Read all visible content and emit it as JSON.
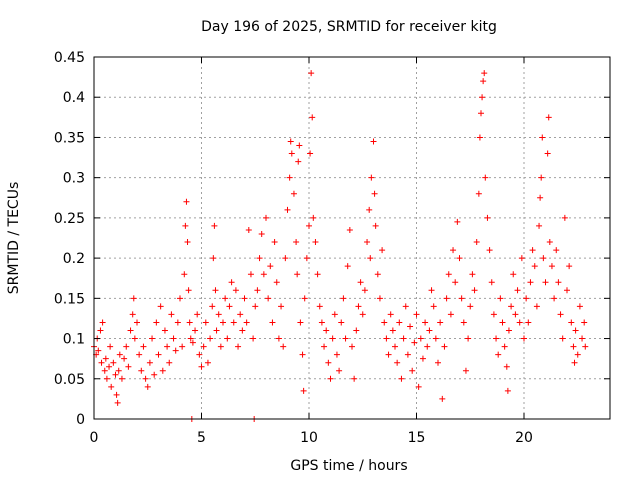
{
  "chart_data": {
    "type": "scatter",
    "title": "Day 196 of 2025, SRMTID for receiver kitg",
    "xlabel": "GPS time / hours",
    "ylabel": "SRMTID / TECUs",
    "xlim": [
      0,
      24
    ],
    "ylim": [
      0,
      0.45
    ],
    "xticks": [
      0,
      5,
      10,
      15,
      20
    ],
    "yticks": [
      0,
      0.05,
      0.1,
      0.15,
      0.2,
      0.25,
      0.3,
      0.35,
      0.4,
      0.45
    ],
    "xtick_labels": [
      "0",
      "5",
      "10",
      "15",
      "20"
    ],
    "ytick_labels": [
      "0",
      "0.05",
      "0.1",
      "0.15",
      "0.2",
      "0.25",
      "0.3",
      "0.35",
      "0.4",
      "0.45"
    ],
    "grid": true,
    "marker": "+",
    "color": "#ff0000",
    "series": [
      {
        "name": "kitg",
        "points": [
          [
            0.0,
            0.09
          ],
          [
            0.1,
            0.08
          ],
          [
            0.15,
            0.1
          ],
          [
            0.2,
            0.085
          ],
          [
            0.3,
            0.11
          ],
          [
            0.35,
            0.07
          ],
          [
            0.4,
            0.12
          ],
          [
            0.5,
            0.06
          ],
          [
            0.55,
            0.075
          ],
          [
            0.6,
            0.05
          ],
          [
            0.7,
            0.065
          ],
          [
            0.75,
            0.09
          ],
          [
            0.8,
            0.04
          ],
          [
            0.9,
            0.07
          ],
          [
            1.0,
            0.055
          ],
          [
            1.05,
            0.03
          ],
          [
            1.1,
            0.02
          ],
          [
            1.15,
            0.06
          ],
          [
            1.2,
            0.08
          ],
          [
            1.3,
            0.05
          ],
          [
            1.4,
            0.075
          ],
          [
            1.5,
            0.09
          ],
          [
            1.6,
            0.065
          ],
          [
            1.7,
            0.11
          ],
          [
            1.8,
            0.13
          ],
          [
            1.85,
            0.15
          ],
          [
            1.9,
            0.1
          ],
          [
            2.0,
            0.12
          ],
          [
            2.1,
            0.08
          ],
          [
            2.2,
            0.06
          ],
          [
            2.3,
            0.09
          ],
          [
            2.4,
            0.05
          ],
          [
            2.5,
            0.04
          ],
          [
            2.6,
            0.07
          ],
          [
            2.7,
            0.1
          ],
          [
            2.8,
            0.055
          ],
          [
            2.9,
            0.12
          ],
          [
            3.0,
            0.08
          ],
          [
            3.1,
            0.14
          ],
          [
            3.2,
            0.06
          ],
          [
            3.3,
            0.11
          ],
          [
            3.4,
            0.09
          ],
          [
            3.5,
            0.07
          ],
          [
            3.6,
            0.13
          ],
          [
            3.7,
            0.1
          ],
          [
            3.8,
            0.085
          ],
          [
            3.9,
            0.12
          ],
          [
            4.0,
            0.15
          ],
          [
            4.1,
            0.09
          ],
          [
            4.2,
            0.18
          ],
          [
            4.25,
            0.24
          ],
          [
            4.3,
            0.27
          ],
          [
            4.35,
            0.22
          ],
          [
            4.4,
            0.16
          ],
          [
            4.45,
            0.12
          ],
          [
            4.5,
            0.1
          ],
          [
            4.55,
            0.0
          ],
          [
            4.6,
            0.095
          ],
          [
            4.7,
            0.11
          ],
          [
            4.8,
            0.13
          ],
          [
            4.9,
            0.08
          ],
          [
            5.0,
            0.065
          ],
          [
            5.1,
            0.09
          ],
          [
            5.2,
            0.12
          ],
          [
            5.3,
            0.07
          ],
          [
            5.4,
            0.1
          ],
          [
            5.5,
            0.14
          ],
          [
            5.55,
            0.2
          ],
          [
            5.6,
            0.24
          ],
          [
            5.65,
            0.16
          ],
          [
            5.7,
            0.11
          ],
          [
            5.8,
            0.13
          ],
          [
            5.9,
            0.09
          ],
          [
            6.0,
            0.12
          ],
          [
            6.1,
            0.15
          ],
          [
            6.2,
            0.1
          ],
          [
            6.3,
            0.14
          ],
          [
            6.4,
            0.17
          ],
          [
            6.5,
            0.12
          ],
          [
            6.6,
            0.16
          ],
          [
            6.7,
            0.09
          ],
          [
            6.8,
            0.13
          ],
          [
            6.9,
            0.11
          ],
          [
            7.0,
            0.15
          ],
          [
            7.1,
            0.12
          ],
          [
            7.2,
            0.235
          ],
          [
            7.3,
            0.18
          ],
          [
            7.4,
            0.1
          ],
          [
            7.45,
            0.0
          ],
          [
            7.5,
            0.14
          ],
          [
            7.6,
            0.16
          ],
          [
            7.7,
            0.2
          ],
          [
            7.8,
            0.23
          ],
          [
            7.9,
            0.18
          ],
          [
            8.0,
            0.25
          ],
          [
            8.1,
            0.15
          ],
          [
            8.2,
            0.19
          ],
          [
            8.3,
            0.12
          ],
          [
            8.4,
            0.22
          ],
          [
            8.5,
            0.17
          ],
          [
            8.6,
            0.1
          ],
          [
            8.7,
            0.14
          ],
          [
            8.8,
            0.09
          ],
          [
            8.9,
            0.2
          ],
          [
            9.0,
            0.26
          ],
          [
            9.1,
            0.3
          ],
          [
            9.15,
            0.345
          ],
          [
            9.2,
            0.33
          ],
          [
            9.3,
            0.28
          ],
          [
            9.4,
            0.22
          ],
          [
            9.45,
            0.18
          ],
          [
            9.5,
            0.32
          ],
          [
            9.55,
            0.34
          ],
          [
            9.6,
            0.12
          ],
          [
            9.7,
            0.08
          ],
          [
            9.75,
            0.035
          ],
          [
            9.8,
            0.15
          ],
          [
            9.9,
            0.2
          ],
          [
            10.0,
            0.24
          ],
          [
            10.05,
            0.33
          ],
          [
            10.1,
            0.43
          ],
          [
            10.15,
            0.375
          ],
          [
            10.2,
            0.25
          ],
          [
            10.3,
            0.22
          ],
          [
            10.4,
            0.18
          ],
          [
            10.5,
            0.14
          ],
          [
            10.6,
            0.12
          ],
          [
            10.7,
            0.09
          ],
          [
            10.8,
            0.11
          ],
          [
            10.9,
            0.07
          ],
          [
            11.0,
            0.05
          ],
          [
            11.1,
            0.1
          ],
          [
            11.2,
            0.13
          ],
          [
            11.3,
            0.08
          ],
          [
            11.4,
            0.06
          ],
          [
            11.5,
            0.12
          ],
          [
            11.6,
            0.15
          ],
          [
            11.7,
            0.1
          ],
          [
            11.8,
            0.19
          ],
          [
            11.9,
            0.235
          ],
          [
            12.0,
            0.09
          ],
          [
            12.1,
            0.05
          ],
          [
            12.2,
            0.11
          ],
          [
            12.3,
            0.14
          ],
          [
            12.4,
            0.17
          ],
          [
            12.5,
            0.13
          ],
          [
            12.6,
            0.16
          ],
          [
            12.7,
            0.22
          ],
          [
            12.8,
            0.26
          ],
          [
            12.85,
            0.2
          ],
          [
            12.9,
            0.3
          ],
          [
            13.0,
            0.345
          ],
          [
            13.05,
            0.28
          ],
          [
            13.1,
            0.24
          ],
          [
            13.2,
            0.18
          ],
          [
            13.3,
            0.15
          ],
          [
            13.4,
            0.21
          ],
          [
            13.5,
            0.12
          ],
          [
            13.6,
            0.1
          ],
          [
            13.7,
            0.08
          ],
          [
            13.8,
            0.13
          ],
          [
            13.9,
            0.11
          ],
          [
            14.0,
            0.09
          ],
          [
            14.1,
            0.07
          ],
          [
            14.2,
            0.12
          ],
          [
            14.3,
            0.05
          ],
          [
            14.4,
            0.1
          ],
          [
            14.5,
            0.14
          ],
          [
            14.6,
            0.08
          ],
          [
            14.7,
            0.115
          ],
          [
            14.8,
            0.06
          ],
          [
            14.9,
            0.095
          ],
          [
            15.0,
            0.13
          ],
          [
            15.1,
            0.04
          ],
          [
            15.2,
            0.1
          ],
          [
            15.3,
            0.075
          ],
          [
            15.4,
            0.12
          ],
          [
            15.5,
            0.09
          ],
          [
            15.6,
            0.11
          ],
          [
            15.7,
            0.16
          ],
          [
            15.8,
            0.14
          ],
          [
            15.9,
            0.1
          ],
          [
            16.0,
            0.07
          ],
          [
            16.1,
            0.12
          ],
          [
            16.2,
            0.025
          ],
          [
            16.3,
            0.09
          ],
          [
            16.4,
            0.15
          ],
          [
            16.5,
            0.18
          ],
          [
            16.6,
            0.13
          ],
          [
            16.7,
            0.21
          ],
          [
            16.8,
            0.17
          ],
          [
            16.9,
            0.245
          ],
          [
            17.0,
            0.2
          ],
          [
            17.1,
            0.15
          ],
          [
            17.2,
            0.12
          ],
          [
            17.3,
            0.06
          ],
          [
            17.4,
            0.1
          ],
          [
            17.5,
            0.14
          ],
          [
            17.6,
            0.18
          ],
          [
            17.7,
            0.16
          ],
          [
            17.8,
            0.22
          ],
          [
            17.9,
            0.28
          ],
          [
            17.95,
            0.35
          ],
          [
            18.0,
            0.38
          ],
          [
            18.05,
            0.4
          ],
          [
            18.1,
            0.42
          ],
          [
            18.15,
            0.43
          ],
          [
            18.2,
            0.3
          ],
          [
            18.3,
            0.25
          ],
          [
            18.4,
            0.21
          ],
          [
            18.5,
            0.17
          ],
          [
            18.6,
            0.13
          ],
          [
            18.7,
            0.1
          ],
          [
            18.8,
            0.08
          ],
          [
            18.9,
            0.15
          ],
          [
            19.0,
            0.12
          ],
          [
            19.1,
            0.09
          ],
          [
            19.2,
            0.065
          ],
          [
            19.25,
            0.035
          ],
          [
            19.3,
            0.11
          ],
          [
            19.4,
            0.14
          ],
          [
            19.5,
            0.18
          ],
          [
            19.6,
            0.13
          ],
          [
            19.7,
            0.16
          ],
          [
            19.8,
            0.12
          ],
          [
            19.9,
            0.2
          ],
          [
            20.0,
            0.1
          ],
          [
            20.1,
            0.15
          ],
          [
            20.2,
            0.12
          ],
          [
            20.3,
            0.17
          ],
          [
            20.4,
            0.21
          ],
          [
            20.5,
            0.19
          ],
          [
            20.6,
            0.14
          ],
          [
            20.7,
            0.24
          ],
          [
            20.75,
            0.275
          ],
          [
            20.8,
            0.3
          ],
          [
            20.85,
            0.35
          ],
          [
            20.9,
            0.2
          ],
          [
            21.0,
            0.17
          ],
          [
            21.1,
            0.33
          ],
          [
            21.15,
            0.375
          ],
          [
            21.2,
            0.22
          ],
          [
            21.3,
            0.19
          ],
          [
            21.4,
            0.15
          ],
          [
            21.5,
            0.21
          ],
          [
            21.6,
            0.17
          ],
          [
            21.7,
            0.13
          ],
          [
            21.8,
            0.1
          ],
          [
            21.9,
            0.25
          ],
          [
            22.0,
            0.16
          ],
          [
            22.1,
            0.19
          ],
          [
            22.2,
            0.12
          ],
          [
            22.3,
            0.09
          ],
          [
            22.35,
            0.07
          ],
          [
            22.4,
            0.11
          ],
          [
            22.5,
            0.08
          ],
          [
            22.6,
            0.14
          ],
          [
            22.7,
            0.1
          ],
          [
            22.8,
            0.12
          ],
          [
            22.85,
            0.09
          ]
        ]
      }
    ]
  }
}
